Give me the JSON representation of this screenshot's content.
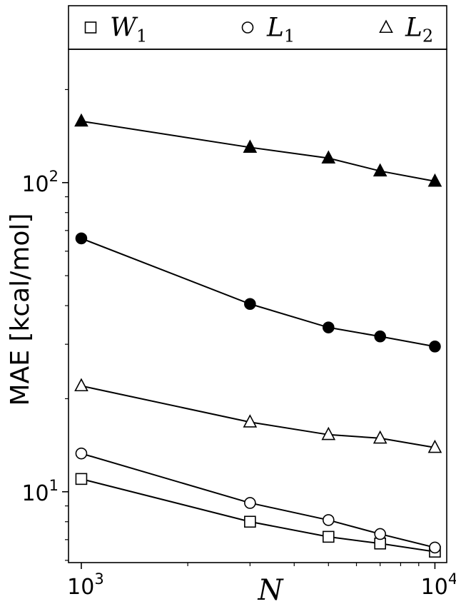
{
  "chart_data": {
    "type": "line",
    "xscale": "log",
    "yscale": "log",
    "xlabel": "N",
    "ylabel": "MAE [kcal/mol]",
    "xlim": [
      920,
      10800
    ],
    "ylim": [
      5.9,
      270
    ],
    "x_ticks": [
      {
        "value": 1000,
        "base": "10",
        "exp": "3"
      },
      {
        "value": 10000,
        "base": "10",
        "exp": "4"
      }
    ],
    "y_ticks": [
      {
        "value": 10,
        "base": "10",
        "exp": "1"
      },
      {
        "value": 100,
        "base": "10",
        "exp": "2"
      }
    ],
    "legend": {
      "placement": "top-outside",
      "entries": [
        {
          "marker": "square",
          "label": "W",
          "sub": "1"
        },
        {
          "marker": "circle",
          "label": "L",
          "sub": "1"
        },
        {
          "marker": "triangle",
          "label": "L",
          "sub": "2"
        }
      ]
    },
    "series": [
      {
        "marker": "square",
        "fill": "#ffffff",
        "x": [
          1000,
          3000,
          5000,
          7000,
          10000
        ],
        "y": [
          11.0,
          8.0,
          7.15,
          6.8,
          6.4
        ]
      },
      {
        "marker": "circle",
        "fill": "#ffffff",
        "x": [
          1000,
          3000,
          5000,
          7000,
          10000
        ],
        "y": [
          13.3,
          9.2,
          8.1,
          7.3,
          6.6
        ]
      },
      {
        "marker": "triangle",
        "fill": "#ffffff",
        "x": [
          1000,
          3000,
          5000,
          7000,
          10000
        ],
        "y": [
          22.0,
          16.8,
          15.3,
          14.9,
          13.9
        ]
      },
      {
        "marker": "circle",
        "fill": "#000000",
        "x": [
          1000,
          3000,
          5000,
          7000,
          10000
        ],
        "y": [
          66.0,
          40.5,
          34.0,
          31.8,
          29.5
        ]
      },
      {
        "marker": "triangle",
        "fill": "#000000",
        "x": [
          1000,
          3000,
          5000,
          7000,
          10000
        ],
        "y": [
          158.0,
          130.0,
          120.0,
          109.0,
          101.0
        ]
      }
    ]
  }
}
